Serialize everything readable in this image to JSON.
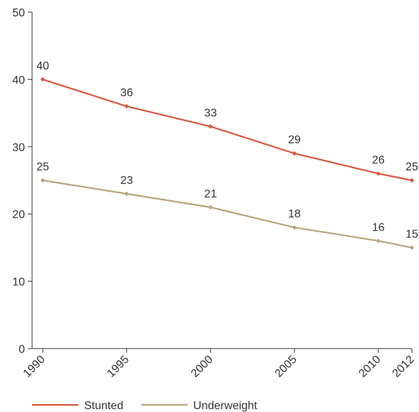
{
  "chart_data": {
    "type": "line",
    "x": [
      1990,
      1995,
      2000,
      2005,
      2010,
      2012
    ],
    "x_tick_labels": [
      "1990",
      "1995",
      "2000",
      "2005",
      "2010",
      "2012"
    ],
    "ylim": [
      0,
      50
    ],
    "y_ticks": [
      0,
      10,
      20,
      30,
      40,
      50
    ],
    "y_tick_labels": [
      "0",
      "10",
      "20",
      "30",
      "40",
      "50"
    ],
    "grid": false,
    "legend_placement": "bottom-left",
    "series": [
      {
        "name": "Stunted",
        "color": "#d9563a",
        "values": [
          40,
          36,
          33,
          29,
          26,
          25
        ],
        "labels": [
          "40",
          "36",
          "33",
          "29",
          "26",
          "25"
        ]
      },
      {
        "name": "Underweight",
        "color": "#b5a57a",
        "values": [
          25,
          23,
          21,
          18,
          16,
          15
        ],
        "labels": [
          "25",
          "23",
          "21",
          "18",
          "16",
          "15"
        ]
      }
    ]
  }
}
